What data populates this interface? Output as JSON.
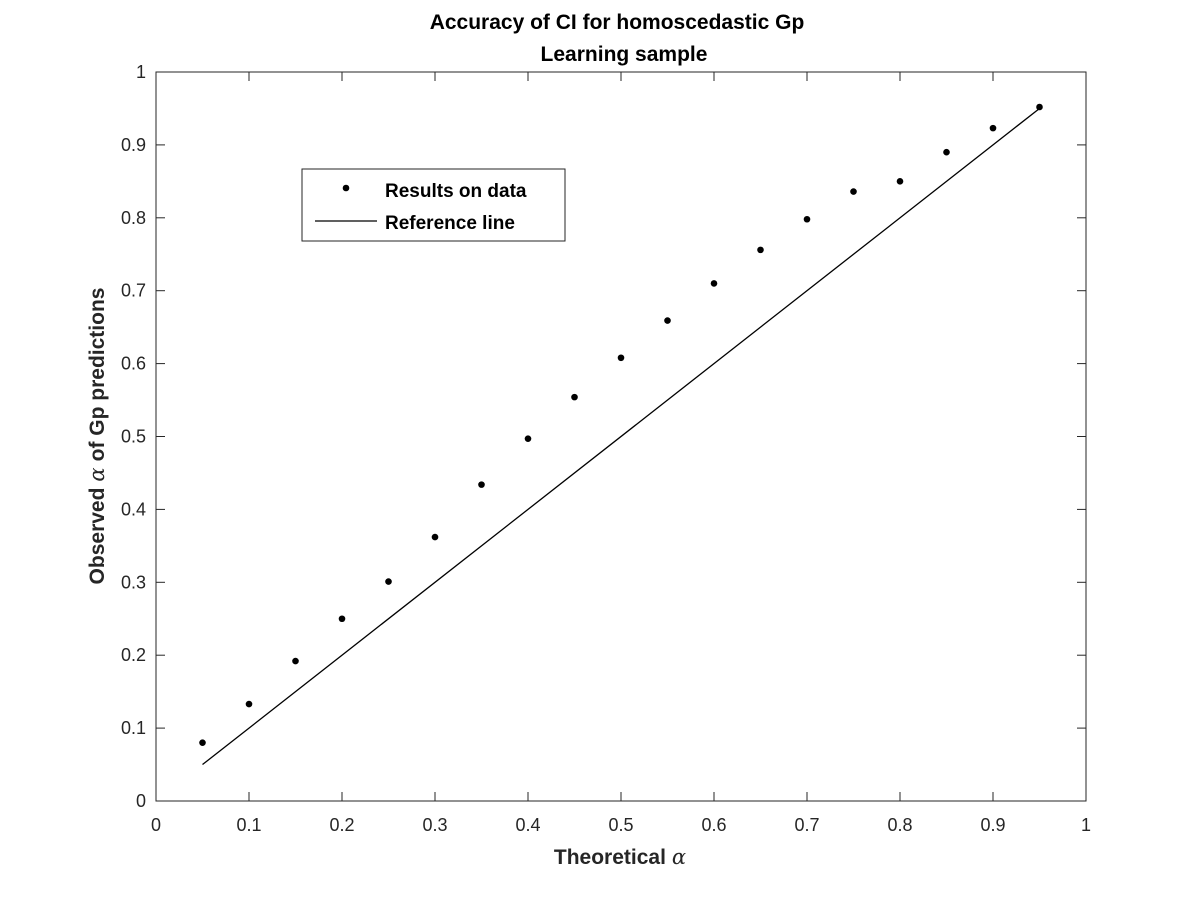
{
  "chart_data": {
    "type": "scatter",
    "title": "Accuracy of CI for homoscedastic Gp",
    "subtitle": "Learning sample",
    "xlabel_prefix": "Theoretical",
    "xlabel_symbol": "α",
    "ylabel_prefix": "Observed",
    "ylabel_symbol": "α",
    "ylabel_suffix": "of Gp predictions",
    "xlim": [
      0,
      1
    ],
    "ylim": [
      0,
      1
    ],
    "xticks": [
      0,
      0.1,
      0.2,
      0.3,
      0.4,
      0.5,
      0.6,
      0.7,
      0.8,
      0.9,
      1
    ],
    "yticks": [
      0,
      0.1,
      0.2,
      0.3,
      0.4,
      0.5,
      0.6,
      0.7,
      0.8,
      0.9,
      1
    ],
    "xtick_labels": [
      "0",
      "0.1",
      "0.2",
      "0.3",
      "0.4",
      "0.5",
      "0.6",
      "0.7",
      "0.8",
      "0.9",
      "1"
    ],
    "ytick_labels": [
      "0",
      "0.1",
      "0.2",
      "0.3",
      "0.4",
      "0.5",
      "0.6",
      "0.7",
      "0.8",
      "0.9",
      "1"
    ],
    "grid": false,
    "legend_position": "upper-left",
    "series": [
      {
        "name": "Results on data",
        "kind": "points",
        "color": "#000000",
        "x": [
          0.05,
          0.1,
          0.15,
          0.2,
          0.25,
          0.3,
          0.35,
          0.4,
          0.45,
          0.5,
          0.55,
          0.6,
          0.65,
          0.7,
          0.75,
          0.8,
          0.85,
          0.9,
          0.95
        ],
        "y": [
          0.08,
          0.133,
          0.192,
          0.25,
          0.301,
          0.362,
          0.434,
          0.497,
          0.554,
          0.608,
          0.659,
          0.71,
          0.756,
          0.798,
          0.836,
          0.85,
          0.89,
          0.923,
          0.952
        ]
      },
      {
        "name": "Reference line",
        "kind": "line",
        "color": "#000000",
        "x": [
          0.05,
          0.95
        ],
        "y": [
          0.05,
          0.95
        ]
      }
    ]
  }
}
